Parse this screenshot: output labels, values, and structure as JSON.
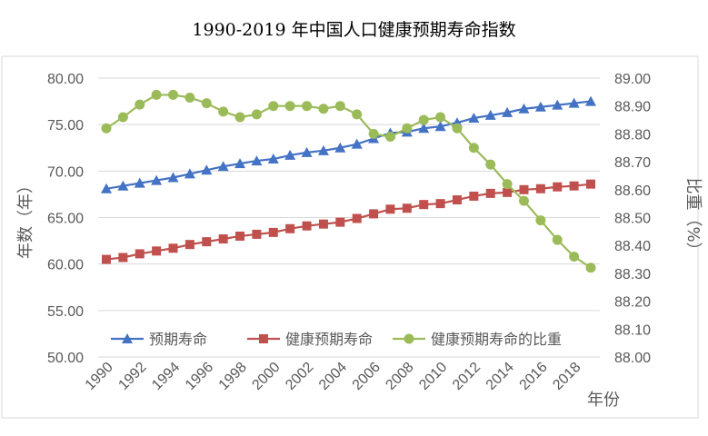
{
  "chart_data": {
    "type": "line",
    "title": "1990-2019 年中国人口健康预期寿命指数",
    "xlabel": "年份",
    "ylabel": "年数（年）",
    "y2label": "比重（%）",
    "x": [
      1990,
      1991,
      1992,
      1993,
      1994,
      1995,
      1996,
      1997,
      1998,
      1999,
      2000,
      2001,
      2002,
      2003,
      2004,
      2005,
      2006,
      2007,
      2008,
      2009,
      2010,
      2011,
      2012,
      2013,
      2014,
      2015,
      2016,
      2017,
      2018,
      2019
    ],
    "x_tick_labels": [
      "1990",
      "1992",
      "1994",
      "1996",
      "1998",
      "2000",
      "2002",
      "2004",
      "2006",
      "2008",
      "2010",
      "2012",
      "2014",
      "2016",
      "2018"
    ],
    "ylim": [
      50,
      80
    ],
    "y_tick_labels": [
      "50.00",
      "55.00",
      "60.00",
      "65.00",
      "70.00",
      "75.00",
      "80.00"
    ],
    "y2lim": [
      88.0,
      89.0
    ],
    "y2_tick_labels": [
      "88.00",
      "88.10",
      "88.20",
      "88.30",
      "88.40",
      "88.50",
      "88.60",
      "88.70",
      "88.80",
      "88.90",
      "89.00"
    ],
    "grid": true,
    "legend_placement": "bottom-inside",
    "series": [
      {
        "name": "预期寿命",
        "axis": "left",
        "color": "#4472C4",
        "marker": "triangle",
        "values": [
          68.1,
          68.4,
          68.7,
          69.0,
          69.3,
          69.7,
          70.1,
          70.5,
          70.8,
          71.1,
          71.3,
          71.7,
          72.0,
          72.2,
          72.5,
          72.9,
          73.5,
          74.1,
          74.2,
          74.6,
          74.8,
          75.2,
          75.7,
          76.0,
          76.3,
          76.7,
          76.9,
          77.1,
          77.3,
          77.5
        ]
      },
      {
        "name": "健康预期寿命",
        "axis": "left",
        "color": "#C0504D",
        "marker": "square",
        "values": [
          60.5,
          60.7,
          61.1,
          61.4,
          61.7,
          62.1,
          62.4,
          62.7,
          63.0,
          63.2,
          63.4,
          63.8,
          64.1,
          64.3,
          64.5,
          64.9,
          65.4,
          65.9,
          66.0,
          66.4,
          66.5,
          66.9,
          67.3,
          67.6,
          67.7,
          68.0,
          68.1,
          68.3,
          68.4,
          68.6
        ]
      },
      {
        "name": "健康预期寿命的比重",
        "axis": "right",
        "color": "#9BBB59",
        "marker": "circle",
        "values": [
          88.82,
          88.86,
          88.905,
          88.94,
          88.94,
          88.93,
          88.91,
          88.88,
          88.86,
          88.87,
          88.9,
          88.9,
          88.9,
          88.89,
          88.9,
          88.87,
          88.8,
          88.79,
          88.82,
          88.85,
          88.86,
          88.82,
          88.75,
          88.69,
          88.62,
          88.56,
          88.49,
          88.42,
          88.36,
          88.32
        ]
      }
    ]
  }
}
